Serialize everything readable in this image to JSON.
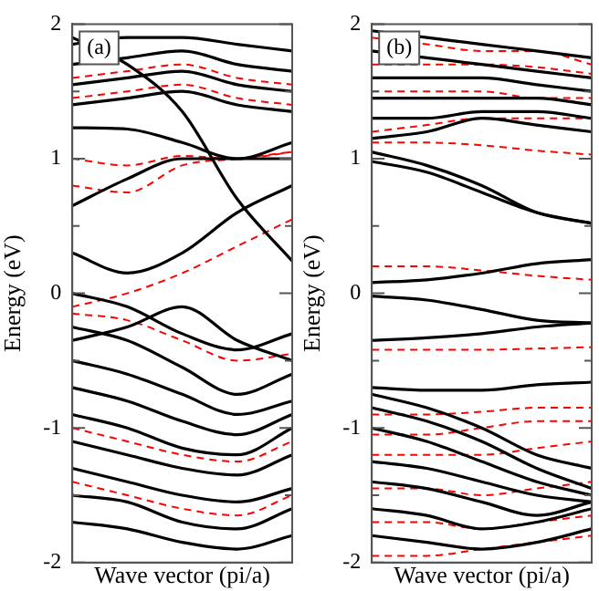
{
  "chart_data": [
    {
      "type": "line",
      "xlabel": "Wave vector (pi/a)",
      "ylabel": "Energy (eV)",
      "annotations": [
        "(a)"
      ],
      "categories": [
        null,
        null,
        null,
        null,
        null
      ],
      "ylim": [
        -2,
        2
      ],
      "yticks": [
        -2,
        {
          "value": -1.5,
          "label": null
        },
        -1,
        {
          "value": -0.5,
          "label": null
        },
        0,
        {
          "value": 0.5,
          "label": null
        },
        1,
        {
          "value": 1.5,
          "label": null
        },
        2
      ],
      "tick_labels": "y",
      "grid": false,
      "legend": false,
      "marker": "none",
      "series": [
        {
          "color": "#000000",
          "line_style": "solid",
          "values": [
            1.23,
            1.22,
            1.12,
            1.0,
            1.12
          ]
        },
        {
          "color": "#000000",
          "line_style": "solid",
          "values": [
            0.65,
            0.85,
            1.0,
            1.0,
            1.0
          ]
        },
        {
          "color": "#000000",
          "line_style": "solid",
          "values": [
            0.3,
            0.15,
            0.3,
            0.6,
            0.8
          ]
        },
        {
          "color": "#000000",
          "line_style": "solid",
          "values": [
            1.9,
            1.7,
            1.35,
            0.7,
            0.24
          ]
        },
        {
          "color": "#000000",
          "line_style": "solid",
          "values": [
            1.4,
            1.45,
            1.5,
            1.4,
            1.35
          ]
        },
        {
          "color": "#000000",
          "line_style": "solid",
          "values": [
            1.55,
            1.6,
            1.65,
            1.55,
            1.5
          ]
        },
        {
          "color": "#000000",
          "line_style": "solid",
          "values": [
            1.7,
            1.75,
            1.8,
            1.7,
            1.65
          ]
        },
        {
          "color": "#000000",
          "line_style": "solid",
          "values": [
            1.85,
            1.9,
            1.9,
            1.85,
            1.8
          ]
        },
        {
          "color": "#000000",
          "line_style": "solid",
          "values": [
            0.0,
            -0.1,
            -0.3,
            -0.42,
            -0.3
          ]
        },
        {
          "color": "#000000",
          "line_style": "solid",
          "values": [
            -0.35,
            -0.25,
            -0.1,
            -0.35,
            -0.5
          ]
        },
        {
          "color": "#000000",
          "line_style": "solid",
          "values": [
            -0.25,
            -0.35,
            -0.55,
            -0.75,
            -0.6
          ]
        },
        {
          "color": "#000000",
          "line_style": "solid",
          "values": [
            -0.5,
            -0.6,
            -0.75,
            -0.9,
            -0.8
          ]
        },
        {
          "color": "#000000",
          "line_style": "solid",
          "values": [
            -0.7,
            -0.8,
            -0.95,
            -1.05,
            -0.9
          ]
        },
        {
          "color": "#000000",
          "line_style": "solid",
          "values": [
            -0.9,
            -1.0,
            -1.15,
            -1.2,
            -1.0
          ]
        },
        {
          "color": "#000000",
          "line_style": "solid",
          "values": [
            -1.1,
            -1.2,
            -1.3,
            -1.35,
            -1.2
          ]
        },
        {
          "color": "#000000",
          "line_style": "solid",
          "values": [
            -1.3,
            -1.4,
            -1.5,
            -1.55,
            -1.45
          ]
        },
        {
          "color": "#000000",
          "line_style": "solid",
          "values": [
            -1.5,
            -1.55,
            -1.7,
            -1.75,
            -1.6
          ]
        },
        {
          "color": "#000000",
          "line_style": "solid",
          "values": [
            -1.7,
            -1.75,
            -1.85,
            -1.9,
            -1.8
          ]
        },
        {
          "color": "#ff0000",
          "line_style": "dashed",
          "values": [
            1.0,
            0.95,
            1.02,
            1.0,
            1.05
          ]
        },
        {
          "color": "#ff0000",
          "line_style": "dashed",
          "values": [
            0.8,
            0.75,
            0.95,
            1.0,
            1.05
          ]
        },
        {
          "color": "#ff0000",
          "line_style": "dashed",
          "values": [
            -0.1,
            0.0,
            0.15,
            0.35,
            0.55
          ]
        },
        {
          "color": "#ff0000",
          "line_style": "dashed",
          "values": [
            1.6,
            1.65,
            1.7,
            1.6,
            1.55
          ]
        },
        {
          "color": "#ff0000",
          "line_style": "dashed",
          "values": [
            1.45,
            1.5,
            1.55,
            1.45,
            1.4
          ]
        },
        {
          "color": "#ff0000",
          "line_style": "dashed",
          "values": [
            -0.15,
            -0.2,
            -0.35,
            -0.5,
            -0.45
          ]
        },
        {
          "color": "#ff0000",
          "line_style": "dashed",
          "values": [
            -1.0,
            -1.1,
            -1.2,
            -1.25,
            -1.1
          ]
        },
        {
          "color": "#ff0000",
          "line_style": "dashed",
          "values": [
            -1.4,
            -1.5,
            -1.6,
            -1.65,
            -1.5
          ]
        }
      ]
    },
    {
      "type": "line",
      "xlabel": "Wave vector (pi/a)",
      "ylabel": "Energy (eV)",
      "annotations": [
        "(b)"
      ],
      "categories": [
        null,
        null,
        null,
        null,
        null
      ],
      "ylim": [
        -2,
        2
      ],
      "yticks": [
        -2,
        {
          "value": -1.5,
          "label": null
        },
        -1,
        {
          "value": -0.5,
          "label": null
        },
        0,
        {
          "value": 0.5,
          "label": null
        },
        1,
        {
          "value": 1.5,
          "label": null
        },
        2
      ],
      "tick_labels": "y",
      "grid": false,
      "legend": false,
      "marker": "none",
      "series": [
        {
          "color": "#000000",
          "line_style": "solid",
          "values": [
            1.05,
            0.95,
            0.8,
            0.6,
            0.52
          ]
        },
        {
          "color": "#000000",
          "line_style": "solid",
          "values": [
            0.98,
            0.9,
            0.75,
            0.6,
            0.52
          ]
        },
        {
          "color": "#000000",
          "line_style": "solid",
          "values": [
            0.08,
            0.1,
            0.15,
            0.22,
            0.25
          ]
        },
        {
          "color": "#000000",
          "line_style": "solid",
          "values": [
            1.15,
            1.2,
            1.3,
            1.25,
            1.2
          ]
        },
        {
          "color": "#000000",
          "line_style": "solid",
          "values": [
            1.3,
            1.3,
            1.35,
            1.35,
            1.3
          ]
        },
        {
          "color": "#000000",
          "line_style": "solid",
          "values": [
            1.45,
            1.45,
            1.45,
            1.45,
            1.4
          ]
        },
        {
          "color": "#000000",
          "line_style": "solid",
          "values": [
            1.6,
            1.6,
            1.6,
            1.55,
            1.5
          ]
        },
        {
          "color": "#000000",
          "line_style": "solid",
          "values": [
            1.8,
            1.75,
            1.7,
            1.65,
            1.6
          ]
        },
        {
          "color": "#000000",
          "line_style": "solid",
          "values": [
            1.95,
            1.9,
            1.85,
            1.8,
            1.75
          ]
        },
        {
          "color": "#000000",
          "line_style": "solid",
          "values": [
            -0.02,
            -0.05,
            -0.12,
            -0.2,
            -0.22
          ]
        },
        {
          "color": "#000000",
          "line_style": "solid",
          "values": [
            -0.35,
            -0.33,
            -0.3,
            -0.25,
            -0.22
          ]
        },
        {
          "color": "#000000",
          "line_style": "solid",
          "values": [
            -0.7,
            -0.72,
            -0.72,
            -0.68,
            -0.66
          ]
        },
        {
          "color": "#000000",
          "line_style": "solid",
          "values": [
            -0.75,
            -0.85,
            -1.0,
            -1.2,
            -1.3
          ]
        },
        {
          "color": "#000000",
          "line_style": "solid",
          "values": [
            -0.85,
            -0.95,
            -1.1,
            -1.3,
            -1.45
          ]
        },
        {
          "color": "#000000",
          "line_style": "solid",
          "values": [
            -1.0,
            -1.1,
            -1.25,
            -1.4,
            -1.5
          ]
        },
        {
          "color": "#000000",
          "line_style": "solid",
          "values": [
            -1.25,
            -1.3,
            -1.4,
            -1.5,
            -1.55
          ]
        },
        {
          "color": "#000000",
          "line_style": "solid",
          "values": [
            -1.4,
            -1.45,
            -1.55,
            -1.65,
            -1.55
          ]
        },
        {
          "color": "#000000",
          "line_style": "solid",
          "values": [
            -1.6,
            -1.65,
            -1.75,
            -1.7,
            -1.6
          ]
        },
        {
          "color": "#000000",
          "line_style": "solid",
          "values": [
            -1.8,
            -1.85,
            -1.9,
            -1.85,
            -1.75
          ]
        },
        {
          "color": "#ff0000",
          "line_style": "dashed",
          "values": [
            0.2,
            0.2,
            0.17,
            0.13,
            0.1
          ]
        },
        {
          "color": "#ff0000",
          "line_style": "dashed",
          "values": [
            1.12,
            1.12,
            1.1,
            1.06,
            1.03
          ]
        },
        {
          "color": "#ff0000",
          "line_style": "dashed",
          "values": [
            1.2,
            1.25,
            1.3,
            1.3,
            1.3
          ]
        },
        {
          "color": "#ff0000",
          "line_style": "dashed",
          "values": [
            1.5,
            1.5,
            1.5,
            1.45,
            1.45
          ]
        },
        {
          "color": "#ff0000",
          "line_style": "dashed",
          "values": [
            1.7,
            1.7,
            1.7,
            1.68,
            1.63
          ]
        },
        {
          "color": "#ff0000",
          "line_style": "dashed",
          "values": [
            1.9,
            1.85,
            1.8,
            1.8,
            1.7
          ]
        },
        {
          "color": "#ff0000",
          "line_style": "dashed",
          "values": [
            -0.42,
            -0.42,
            -0.42,
            -0.41,
            -0.4
          ]
        },
        {
          "color": "#ff0000",
          "line_style": "dashed",
          "values": [
            -0.9,
            -0.9,
            -0.88,
            -0.85,
            -0.85
          ]
        },
        {
          "color": "#ff0000",
          "line_style": "dashed",
          "values": [
            -1.05,
            -1.05,
            -1.0,
            -0.95,
            -0.95
          ]
        },
        {
          "color": "#ff0000",
          "line_style": "dashed",
          "values": [
            -1.2,
            -1.2,
            -1.2,
            -1.15,
            -1.1
          ]
        },
        {
          "color": "#ff0000",
          "line_style": "dashed",
          "values": [
            -1.45,
            -1.45,
            -1.5,
            -1.45,
            -1.4
          ]
        },
        {
          "color": "#ff0000",
          "line_style": "dashed",
          "values": [
            -1.7,
            -1.7,
            -1.75,
            -1.7,
            -1.65
          ]
        },
        {
          "color": "#ff0000",
          "line_style": "dashed",
          "values": [
            -1.95,
            -1.95,
            -1.9,
            -1.85,
            -1.8
          ]
        }
      ]
    }
  ]
}
